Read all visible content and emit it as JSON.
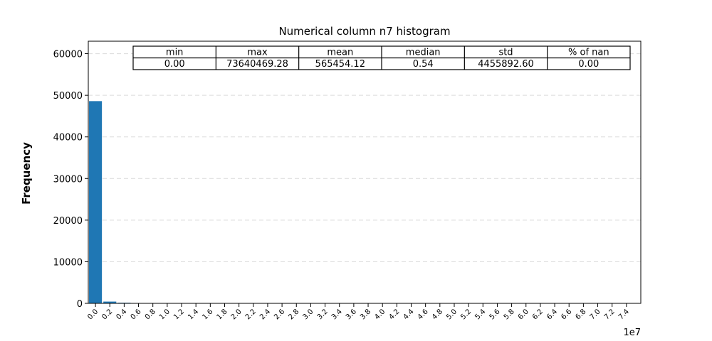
{
  "chart_data": {
    "type": "bar",
    "title": "Numerical column n7 histogram",
    "ylabel": "Frequency",
    "xlabel": "",
    "x_offset_label": "1e7",
    "ylim": [
      0,
      63000
    ],
    "xlim": [
      -0.1,
      7.6
    ],
    "y_ticks": [
      0,
      10000,
      20000,
      30000,
      40000,
      50000,
      60000
    ],
    "y_tick_labels": [
      "0",
      "10000",
      "20000",
      "30000",
      "40000",
      "50000",
      "60000"
    ],
    "x_ticks": [
      0.0,
      0.2,
      0.4,
      0.6,
      0.8,
      1.0,
      1.2,
      1.4,
      1.6,
      1.8,
      2.0,
      2.2,
      2.4,
      2.6,
      2.8,
      3.0,
      3.2,
      3.4,
      3.6,
      3.8,
      4.0,
      4.2,
      4.4,
      4.6,
      4.8,
      5.0,
      5.2,
      5.4,
      5.6,
      5.8,
      6.0,
      6.2,
      6.4,
      6.6,
      6.8,
      7.0,
      7.2,
      7.4
    ],
    "x_tick_labels": [
      "0.0",
      "0.2",
      "0.4",
      "0.6",
      "0.8",
      "1.0",
      "1.2",
      "1.4",
      "1.6",
      "1.8",
      "2.0",
      "2.2",
      "2.4",
      "2.6",
      "2.8",
      "3.0",
      "3.2",
      "3.4",
      "3.6",
      "3.8",
      "4.0",
      "4.2",
      "4.4",
      "4.6",
      "4.8",
      "5.0",
      "5.2",
      "5.4",
      "5.6",
      "5.8",
      "6.0",
      "6.2",
      "6.4",
      "6.6",
      "6.8",
      "7.0",
      "7.2",
      "7.4"
    ],
    "categories": [
      "0.0",
      "0.2",
      "0.4",
      "0.6",
      "0.8",
      "1.0",
      "1.2",
      "1.4",
      "1.6",
      "1.8",
      "2.0",
      "2.2",
      "2.4",
      "2.6",
      "2.8",
      "3.0",
      "3.2",
      "3.4",
      "3.6",
      "3.8",
      "4.0",
      "4.2",
      "4.4",
      "4.6",
      "4.8",
      "5.0",
      "5.2",
      "5.4",
      "5.6",
      "5.8",
      "6.0",
      "6.2",
      "6.4",
      "6.6",
      "6.8",
      "7.0",
      "7.2",
      "7.4"
    ],
    "values": [
      48600,
      420,
      150,
      40,
      20,
      10,
      8,
      6,
      5,
      4,
      3,
      3,
      2,
      2,
      2,
      1,
      1,
      1,
      1,
      1,
      1,
      1,
      1,
      1,
      1,
      1,
      1,
      1,
      1,
      1,
      1,
      1,
      1,
      1,
      1,
      1,
      1,
      1
    ],
    "bar_color": "#1f77b4",
    "grid": "horizontal dashed",
    "legend": "none"
  },
  "stats_table": {
    "headers": [
      "min",
      "max",
      "mean",
      "median",
      "std",
      "% of nan"
    ],
    "values": [
      "0.00",
      "73640469.28",
      "565454.12",
      "0.54",
      "4455892.60",
      "0.00"
    ]
  }
}
